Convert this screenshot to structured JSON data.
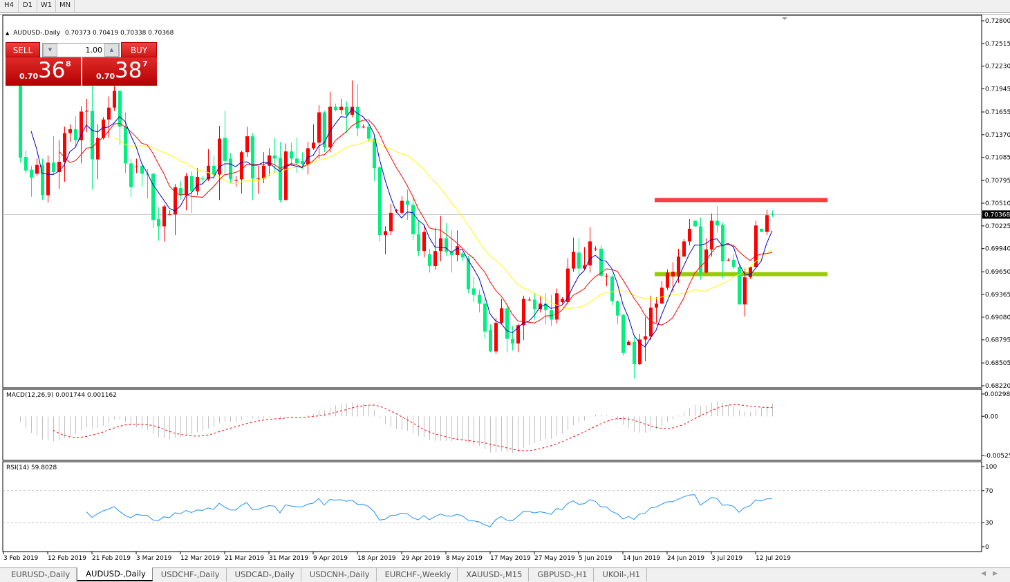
{
  "timeframes": [
    {
      "label": "H4",
      "active": false
    },
    {
      "label": "D1",
      "active": true
    },
    {
      "label": "W1",
      "active": false
    },
    {
      "label": "MN",
      "active": false
    }
  ],
  "chart_header": {
    "symbol": "AUDUSD-,Daily",
    "ohlc_text": "0.70373 0.70419 0.70338 0.70368"
  },
  "trade_panel": {
    "sell_label": "SELL",
    "buy_label": "BUY",
    "lot_value": "1.00",
    "sell_price": {
      "prefix": "0.70",
      "big": "36",
      "sup": "8"
    },
    "buy_price": {
      "prefix": "0.70",
      "big": "38",
      "sup": "7"
    }
  },
  "colors": {
    "bull_candle": "#ff0000",
    "bear_candle": "#00f080",
    "ma_fast": "#0000c8",
    "ma_mid": "#ff0000",
    "ma_slow": "#ffff00",
    "resistance_line": "#ff3b3b",
    "support_line": "#99cc00",
    "macd_histogram": "#c0c0c0",
    "macd_signal": "#ff0000",
    "rsi_line": "#1e90ff"
  },
  "tabs": [
    {
      "label": "EURUSD-,Daily",
      "active": false
    },
    {
      "label": "AUDUSD-,Daily",
      "active": true
    },
    {
      "label": "USDCHF-,Daily",
      "active": false
    },
    {
      "label": "USDCAD-,Daily",
      "active": false
    },
    {
      "label": "USDCNH-,Daily",
      "active": false
    },
    {
      "label": "EURCHF-,Weekly",
      "active": false
    },
    {
      "label": "XAUUSD-,M15",
      "active": false
    },
    {
      "label": "GBPUSD-,H1",
      "active": false
    },
    {
      "label": "UKOil-,H1",
      "active": false
    }
  ],
  "chart_data": [
    {
      "type": "candlestick",
      "title": "AUDUSD-,Daily",
      "current_price": "0.70368",
      "ylim": [
        0.6822,
        0.728
      ],
      "y_ticks": [
        "0.72800",
        "0.72515",
        "0.72230",
        "0.71945",
        "0.71655",
        "0.71370",
        "0.71085",
        "0.70795",
        "0.70510",
        "0.70225",
        "0.69940",
        "0.69650",
        "0.69365",
        "0.69080",
        "0.68795",
        "0.68505",
        "0.68220"
      ],
      "x_tick_labels": [
        "3 Feb 2019",
        "12 Feb 2019",
        "21 Feb 2019",
        "3 Mar 2019",
        "12 Mar 2019",
        "21 Mar 2019",
        "31 Mar 2019",
        "9 Apr 2019",
        "18 Apr 2019",
        "29 Apr 2019",
        "8 May 2019",
        "17 May 2019",
        "27 May 2019",
        "5 Jun 2019",
        "14 Jun 2019",
        "24 Jun 2019",
        "3 Jul 2019",
        "12 Jul 2019"
      ],
      "ohlc_columns": [
        "open",
        "high",
        "low",
        "close"
      ],
      "candles": [
        [
          0.7213,
          0.7219,
          0.7209,
          0.7211
        ],
        [
          0.7211,
          0.7219,
          0.7209,
          0.7214
        ],
        [
          0.7219,
          0.7224,
          0.7102,
          0.7108
        ],
        [
          0.7109,
          0.7117,
          0.7088,
          0.7092
        ],
        [
          0.7093,
          0.7098,
          0.7059,
          0.7083
        ],
        [
          0.7088,
          0.7107,
          0.7085,
          0.7099
        ],
        [
          0.7099,
          0.7107,
          0.7055,
          0.7061
        ],
        [
          0.7061,
          0.7111,
          0.7052,
          0.7102
        ],
        [
          0.7102,
          0.7135,
          0.7087,
          0.709
        ],
        [
          0.709,
          0.713,
          0.7069,
          0.7103
        ],
        [
          0.7103,
          0.7147,
          0.7078,
          0.7139
        ],
        [
          0.7139,
          0.715,
          0.7128,
          0.7144
        ],
        [
          0.7144,
          0.716,
          0.7122,
          0.713
        ],
        [
          0.713,
          0.7173,
          0.7101,
          0.7166
        ],
        [
          0.7166,
          0.7182,
          0.714,
          0.7167
        ],
        [
          0.7167,
          0.7205,
          0.7068,
          0.7106
        ],
        [
          0.7106,
          0.715,
          0.7081,
          0.7133
        ],
        [
          0.7133,
          0.7159,
          0.7131,
          0.7156
        ],
        [
          0.7156,
          0.7185,
          0.7133,
          0.7171
        ],
        [
          0.7171,
          0.7198,
          0.7167,
          0.7192
        ],
        [
          0.7192,
          0.7193,
          0.7124,
          0.7147
        ],
        [
          0.7147,
          0.7165,
          0.7089,
          0.7101
        ],
        [
          0.7101,
          0.7107,
          0.7059,
          0.7071
        ],
        [
          0.7097,
          0.7107,
          0.7089,
          0.7097
        ],
        [
          0.7098,
          0.7101,
          0.7072,
          0.7088
        ],
        [
          0.7088,
          0.7094,
          0.7057,
          0.7087
        ],
        [
          0.7088,
          0.7089,
          0.702,
          0.703
        ],
        [
          0.7031,
          0.7046,
          0.7004,
          0.7022
        ],
        [
          0.7022,
          0.7049,
          0.7003,
          0.7047
        ],
        [
          0.7037,
          0.7042,
          0.7036,
          0.7037
        ],
        [
          0.7037,
          0.7075,
          0.7011,
          0.7071
        ],
        [
          0.707,
          0.7079,
          0.7055,
          0.7061
        ],
        [
          0.7061,
          0.7089,
          0.7042,
          0.7085
        ],
        [
          0.7085,
          0.7091,
          0.7039,
          0.7066
        ],
        [
          0.7066,
          0.7095,
          0.7061,
          0.7084
        ],
        [
          0.7082,
          0.7085,
          0.7077,
          0.7081
        ],
        [
          0.7081,
          0.7119,
          0.7079,
          0.7098
        ],
        [
          0.7098,
          0.7111,
          0.7081,
          0.7087
        ],
        [
          0.7087,
          0.7148,
          0.7055,
          0.7132
        ],
        [
          0.7133,
          0.7167,
          0.7088,
          0.7104
        ],
        [
          0.7107,
          0.7114,
          0.7076,
          0.7081
        ],
        [
          0.708,
          0.7085,
          0.7072,
          0.708
        ],
        [
          0.7081,
          0.7117,
          0.7063,
          0.7115
        ],
        [
          0.7115,
          0.7147,
          0.7109,
          0.7135
        ],
        [
          0.7135,
          0.7139,
          0.7055,
          0.7082
        ],
        [
          0.7082,
          0.7098,
          0.7063,
          0.7082
        ],
        [
          0.7082,
          0.7115,
          0.7076,
          0.7098
        ],
        [
          0.7098,
          0.712,
          0.7085,
          0.7111
        ],
        [
          0.7111,
          0.7133,
          0.7089,
          0.7107
        ],
        [
          0.7108,
          0.7128,
          0.7052,
          0.7055
        ],
        [
          0.7055,
          0.7126,
          0.7055,
          0.7116
        ],
        [
          0.7116,
          0.7127,
          0.7098,
          0.7107
        ],
        [
          0.7107,
          0.7133,
          0.7089,
          0.7101
        ],
        [
          0.7104,
          0.7115,
          0.7094,
          0.71
        ],
        [
          0.71,
          0.7128,
          0.7087,
          0.712
        ],
        [
          0.712,
          0.715,
          0.7118,
          0.7127
        ],
        [
          0.7127,
          0.7174,
          0.7107,
          0.7165
        ],
        [
          0.7165,
          0.7167,
          0.7115,
          0.7121
        ],
        [
          0.7121,
          0.7191,
          0.7115,
          0.7172
        ],
        [
          0.7172,
          0.7176,
          0.7166,
          0.7168
        ],
        [
          0.7168,
          0.7182,
          0.7163,
          0.7172
        ],
        [
          0.7172,
          0.7179,
          0.7139,
          0.7162
        ],
        [
          0.7162,
          0.7205,
          0.7159,
          0.7172
        ],
        [
          0.7172,
          0.72,
          0.7135,
          0.7145
        ],
        [
          0.7147,
          0.715,
          0.7145,
          0.7147
        ],
        [
          0.7147,
          0.715,
          0.7128,
          0.7132
        ],
        [
          0.7132,
          0.7137,
          0.7079,
          0.7095
        ],
        [
          0.7096,
          0.7098,
          0.7003,
          0.7011
        ],
        [
          0.7011,
          0.7022,
          0.6987,
          0.7016
        ],
        [
          0.7016,
          0.705,
          0.7011,
          0.7039
        ],
        [
          0.7042,
          0.7044,
          0.7039,
          0.7042
        ],
        [
          0.7039,
          0.706,
          0.7037,
          0.7054
        ],
        [
          0.7054,
          0.7068,
          0.703,
          0.7049
        ],
        [
          0.7049,
          0.706,
          0.7005,
          0.7012
        ],
        [
          0.7012,
          0.7029,
          0.6985,
          0.6991
        ],
        [
          0.6991,
          0.7023,
          0.6983,
          0.7015
        ],
        [
          0.6987,
          0.6994,
          0.6964,
          0.6972
        ],
        [
          0.6972,
          0.702,
          0.6968,
          0.6991
        ],
        [
          0.6991,
          0.7035,
          0.6978,
          0.7007
        ],
        [
          0.7007,
          0.7026,
          0.6985,
          0.699
        ],
        [
          0.699,
          0.7017,
          0.6964,
          0.6986
        ],
        [
          0.6986,
          0.7017,
          0.6978,
          0.6997
        ],
        [
          0.6988,
          0.699,
          0.6978,
          0.6983
        ],
        [
          0.6982,
          0.6985,
          0.6938,
          0.6943
        ],
        [
          0.6944,
          0.6959,
          0.6927,
          0.6936
        ],
        [
          0.6936,
          0.6942,
          0.6914,
          0.6925
        ],
        [
          0.6925,
          0.6931,
          0.6881,
          0.689
        ],
        [
          0.6892,
          0.6899,
          0.6864,
          0.6865
        ],
        [
          0.6865,
          0.6907,
          0.6862,
          0.6901
        ],
        [
          0.6901,
          0.6931,
          0.6899,
          0.6919
        ],
        [
          0.6919,
          0.6925,
          0.6864,
          0.6881
        ],
        [
          0.6881,
          0.6897,
          0.6866,
          0.6875
        ],
        [
          0.6875,
          0.69,
          0.6864,
          0.6898
        ],
        [
          0.6898,
          0.6935,
          0.6879,
          0.6931
        ],
        [
          0.693,
          0.6933,
          0.6928,
          0.693
        ],
        [
          0.693,
          0.6938,
          0.6905,
          0.6918
        ],
        [
          0.6918,
          0.6935,
          0.6914,
          0.6925
        ],
        [
          0.6925,
          0.6938,
          0.6899,
          0.6917
        ],
        [
          0.6917,
          0.6936,
          0.6897,
          0.6905
        ],
        [
          0.6905,
          0.6944,
          0.69,
          0.6938
        ],
        [
          0.6927,
          0.6933,
          0.6925,
          0.6931
        ],
        [
          0.6927,
          0.6982,
          0.6925,
          0.6969
        ],
        [
          0.6969,
          0.7008,
          0.6965,
          0.699
        ],
        [
          0.6989,
          0.7007,
          0.6961,
          0.6969
        ],
        [
          0.6969,
          0.6996,
          0.6968,
          0.6973
        ],
        [
          0.6973,
          0.7021,
          0.6964,
          0.7003
        ],
        [
          0.6994,
          0.6997,
          0.6991,
          0.6994
        ],
        [
          0.6994,
          0.6999,
          0.6958,
          0.696
        ],
        [
          0.696,
          0.6963,
          0.6947,
          0.696
        ],
        [
          0.6959,
          0.6962,
          0.6923,
          0.6928
        ],
        [
          0.6928,
          0.6929,
          0.6899,
          0.691
        ],
        [
          0.6911,
          0.6912,
          0.686,
          0.6863
        ],
        [
          0.6873,
          0.6879,
          0.6873,
          0.6877
        ],
        [
          0.6877,
          0.6884,
          0.6831,
          0.6849
        ],
        [
          0.6849,
          0.6887,
          0.6848,
          0.688
        ],
        [
          0.688,
          0.6908,
          0.6853,
          0.6884
        ],
        [
          0.6884,
          0.6935,
          0.6879,
          0.692
        ],
        [
          0.692,
          0.6933,
          0.6901,
          0.6925
        ],
        [
          0.6925,
          0.6953,
          0.6925,
          0.6945
        ],
        [
          0.6945,
          0.6968,
          0.6942,
          0.6964
        ],
        [
          0.6959,
          0.6977,
          0.6939,
          0.6965
        ],
        [
          0.6959,
          0.6994,
          0.6951,
          0.6984
        ],
        [
          0.6984,
          0.7006,
          0.6984,
          0.7003
        ],
        [
          0.7003,
          0.7031,
          0.6998,
          0.7019
        ],
        [
          0.7029,
          0.703,
          0.7021,
          0.7022
        ],
        [
          0.7022,
          0.7033,
          0.6955,
          0.6964
        ],
        [
          0.6964,
          0.7007,
          0.6963,
          0.6993
        ],
        [
          0.6993,
          0.7038,
          0.6984,
          0.7029
        ],
        [
          0.7029,
          0.7047,
          0.7014,
          0.7023
        ],
        [
          0.7024,
          0.7027,
          0.6957,
          0.6978
        ],
        [
          0.698,
          0.6982,
          0.6978,
          0.698
        ],
        [
          0.698,
          0.6987,
          0.6968,
          0.6971
        ],
        [
          0.6971,
          0.6974,
          0.6924,
          0.6924
        ],
        [
          0.6924,
          0.6969,
          0.6909,
          0.6958
        ],
        [
          0.6958,
          0.6972,
          0.6956,
          0.6971
        ],
        [
          0.6971,
          0.7029,
          0.6971,
          0.7023
        ],
        [
          0.7019,
          0.7019,
          0.7015,
          0.7015
        ],
        [
          0.7015,
          0.7043,
          0.7011,
          0.7036
        ],
        [
          0.70373,
          0.70419,
          0.70338,
          0.70368
        ]
      ],
      "moving_averages": 3,
      "horizontal_levels": [
        {
          "price": 0.7055,
          "color": "#ff3b3b",
          "from_date": "24 Jun 2019"
        },
        {
          "price": 0.6962,
          "color": "#99cc00",
          "from_date": "24 Jun 2019"
        }
      ],
      "grid": false
    },
    {
      "type": "histogram+line",
      "label": "MACD(12,26,9) 0.001744 0.001162",
      "y_ticks": [
        "0.002984",
        "0.00",
        "-0.005250"
      ],
      "ylim": [
        -0.00525,
        0.002984
      ]
    },
    {
      "type": "line",
      "label": "RSI(14) 59.8028",
      "y_ticks": [
        "100",
        "70",
        "30",
        "0"
      ],
      "ylim": [
        0,
        100
      ],
      "levels": [
        70,
        30
      ]
    }
  ]
}
